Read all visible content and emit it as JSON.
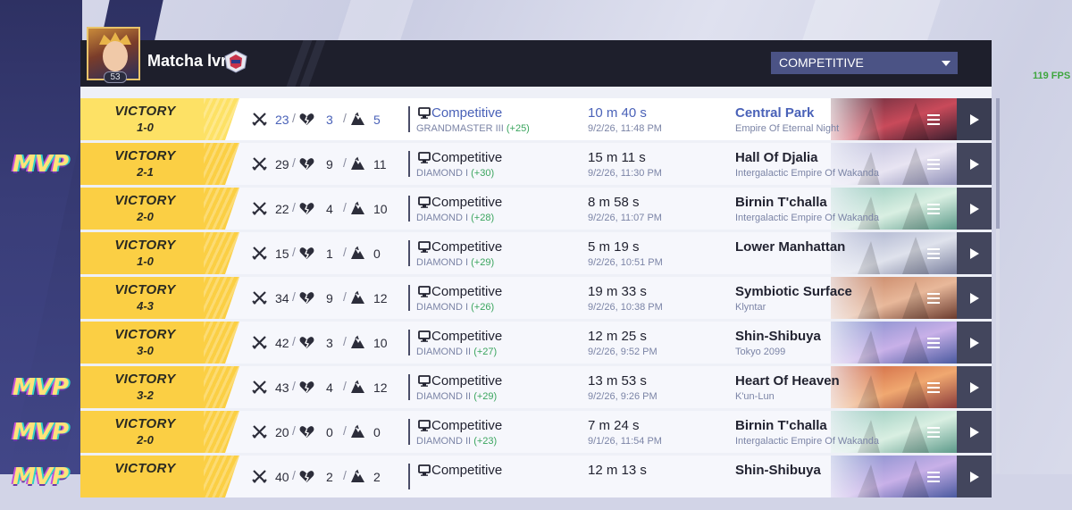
{
  "header": {
    "player_name": "Matcha lvr",
    "level": "53",
    "mode_selected": "COMPETITIVE"
  },
  "fps": "119 FPS",
  "mvp_label": "MVP",
  "icons": {
    "kills": "crossed-swords-icon",
    "deaths": "broken-heart-icon",
    "assists": "assist-icon",
    "mode": "monitor-icon",
    "menu": "menu-icon",
    "play": "play-icon"
  },
  "colors": {
    "victory": "#fbcf44",
    "accent": "#4a62b8",
    "gain": "#3aa55e",
    "mvp": "#ffe27a"
  },
  "matches": [
    {
      "result": "VICTORY",
      "score": "1-0",
      "kills": "23",
      "deaths": "3",
      "assists": "5",
      "mode": "Competitive",
      "rank": "GRANDMASTER III",
      "gain": "(+25)",
      "duration": "10 m 40 s",
      "date": "9/2/26, 11:48 PM",
      "map": "Central Park",
      "region": "Empire Of Eternal Night",
      "mvp": false,
      "selected": true
    },
    {
      "result": "VICTORY",
      "score": "2-1",
      "kills": "29",
      "deaths": "9",
      "assists": "11",
      "mode": "Competitive",
      "rank": "DIAMOND I",
      "gain": "(+30)",
      "duration": "15 m 11 s",
      "date": "9/2/26, 11:30 PM",
      "map": "Hall Of Djalia",
      "region": "Intergalactic Empire Of Wakanda",
      "mvp": true,
      "selected": false
    },
    {
      "result": "VICTORY",
      "score": "2-0",
      "kills": "22",
      "deaths": "4",
      "assists": "10",
      "mode": "Competitive",
      "rank": "DIAMOND I",
      "gain": "(+28)",
      "duration": "8 m 58 s",
      "date": "9/2/26, 11:07 PM",
      "map": "Birnin T'challa",
      "region": "Intergalactic Empire Of Wakanda",
      "mvp": false,
      "selected": false
    },
    {
      "result": "VICTORY",
      "score": "1-0",
      "kills": "15",
      "deaths": "1",
      "assists": "0",
      "mode": "Competitive",
      "rank": "DIAMOND I",
      "gain": "(+29)",
      "duration": "5 m 19 s",
      "date": "9/2/26, 10:51 PM",
      "map": "Lower Manhattan",
      "region": "",
      "mvp": false,
      "selected": false
    },
    {
      "result": "VICTORY",
      "score": "4-3",
      "kills": "34",
      "deaths": "9",
      "assists": "12",
      "mode": "Competitive",
      "rank": "DIAMOND I",
      "gain": "(+26)",
      "duration": "19 m 33 s",
      "date": "9/2/26, 10:38 PM",
      "map": "Symbiotic Surface",
      "region": "Klyntar",
      "mvp": false,
      "selected": false
    },
    {
      "result": "VICTORY",
      "score": "3-0",
      "kills": "42",
      "deaths": "3",
      "assists": "10",
      "mode": "Competitive",
      "rank": "DIAMOND II",
      "gain": "(+27)",
      "duration": "12 m 25 s",
      "date": "9/2/26, 9:52 PM",
      "map": "Shin-Shibuya",
      "region": "Tokyo 2099",
      "mvp": false,
      "selected": false
    },
    {
      "result": "VICTORY",
      "score": "3-2",
      "kills": "43",
      "deaths": "4",
      "assists": "12",
      "mode": "Competitive",
      "rank": "DIAMOND II",
      "gain": "(+29)",
      "duration": "13 m 53 s",
      "date": "9/2/26, 9:26 PM",
      "map": "Heart Of Heaven",
      "region": "K'un-Lun",
      "mvp": true,
      "selected": false
    },
    {
      "result": "VICTORY",
      "score": "2-0",
      "kills": "20",
      "deaths": "0",
      "assists": "0",
      "mode": "Competitive",
      "rank": "DIAMOND II",
      "gain": "(+23)",
      "duration": "7 m 24 s",
      "date": "9/1/26, 11:54 PM",
      "map": "Birnin T'challa",
      "region": "Intergalactic Empire Of Wakanda",
      "mvp": true,
      "selected": false
    },
    {
      "result": "VICTORY",
      "score": "",
      "kills": "40",
      "deaths": "2",
      "assists": "2",
      "mode": "Competitive",
      "rank": "",
      "gain": "",
      "duration": "12 m 13 s",
      "date": "",
      "map": "Shin-Shibuya",
      "region": "",
      "mvp": true,
      "selected": false
    }
  ]
}
